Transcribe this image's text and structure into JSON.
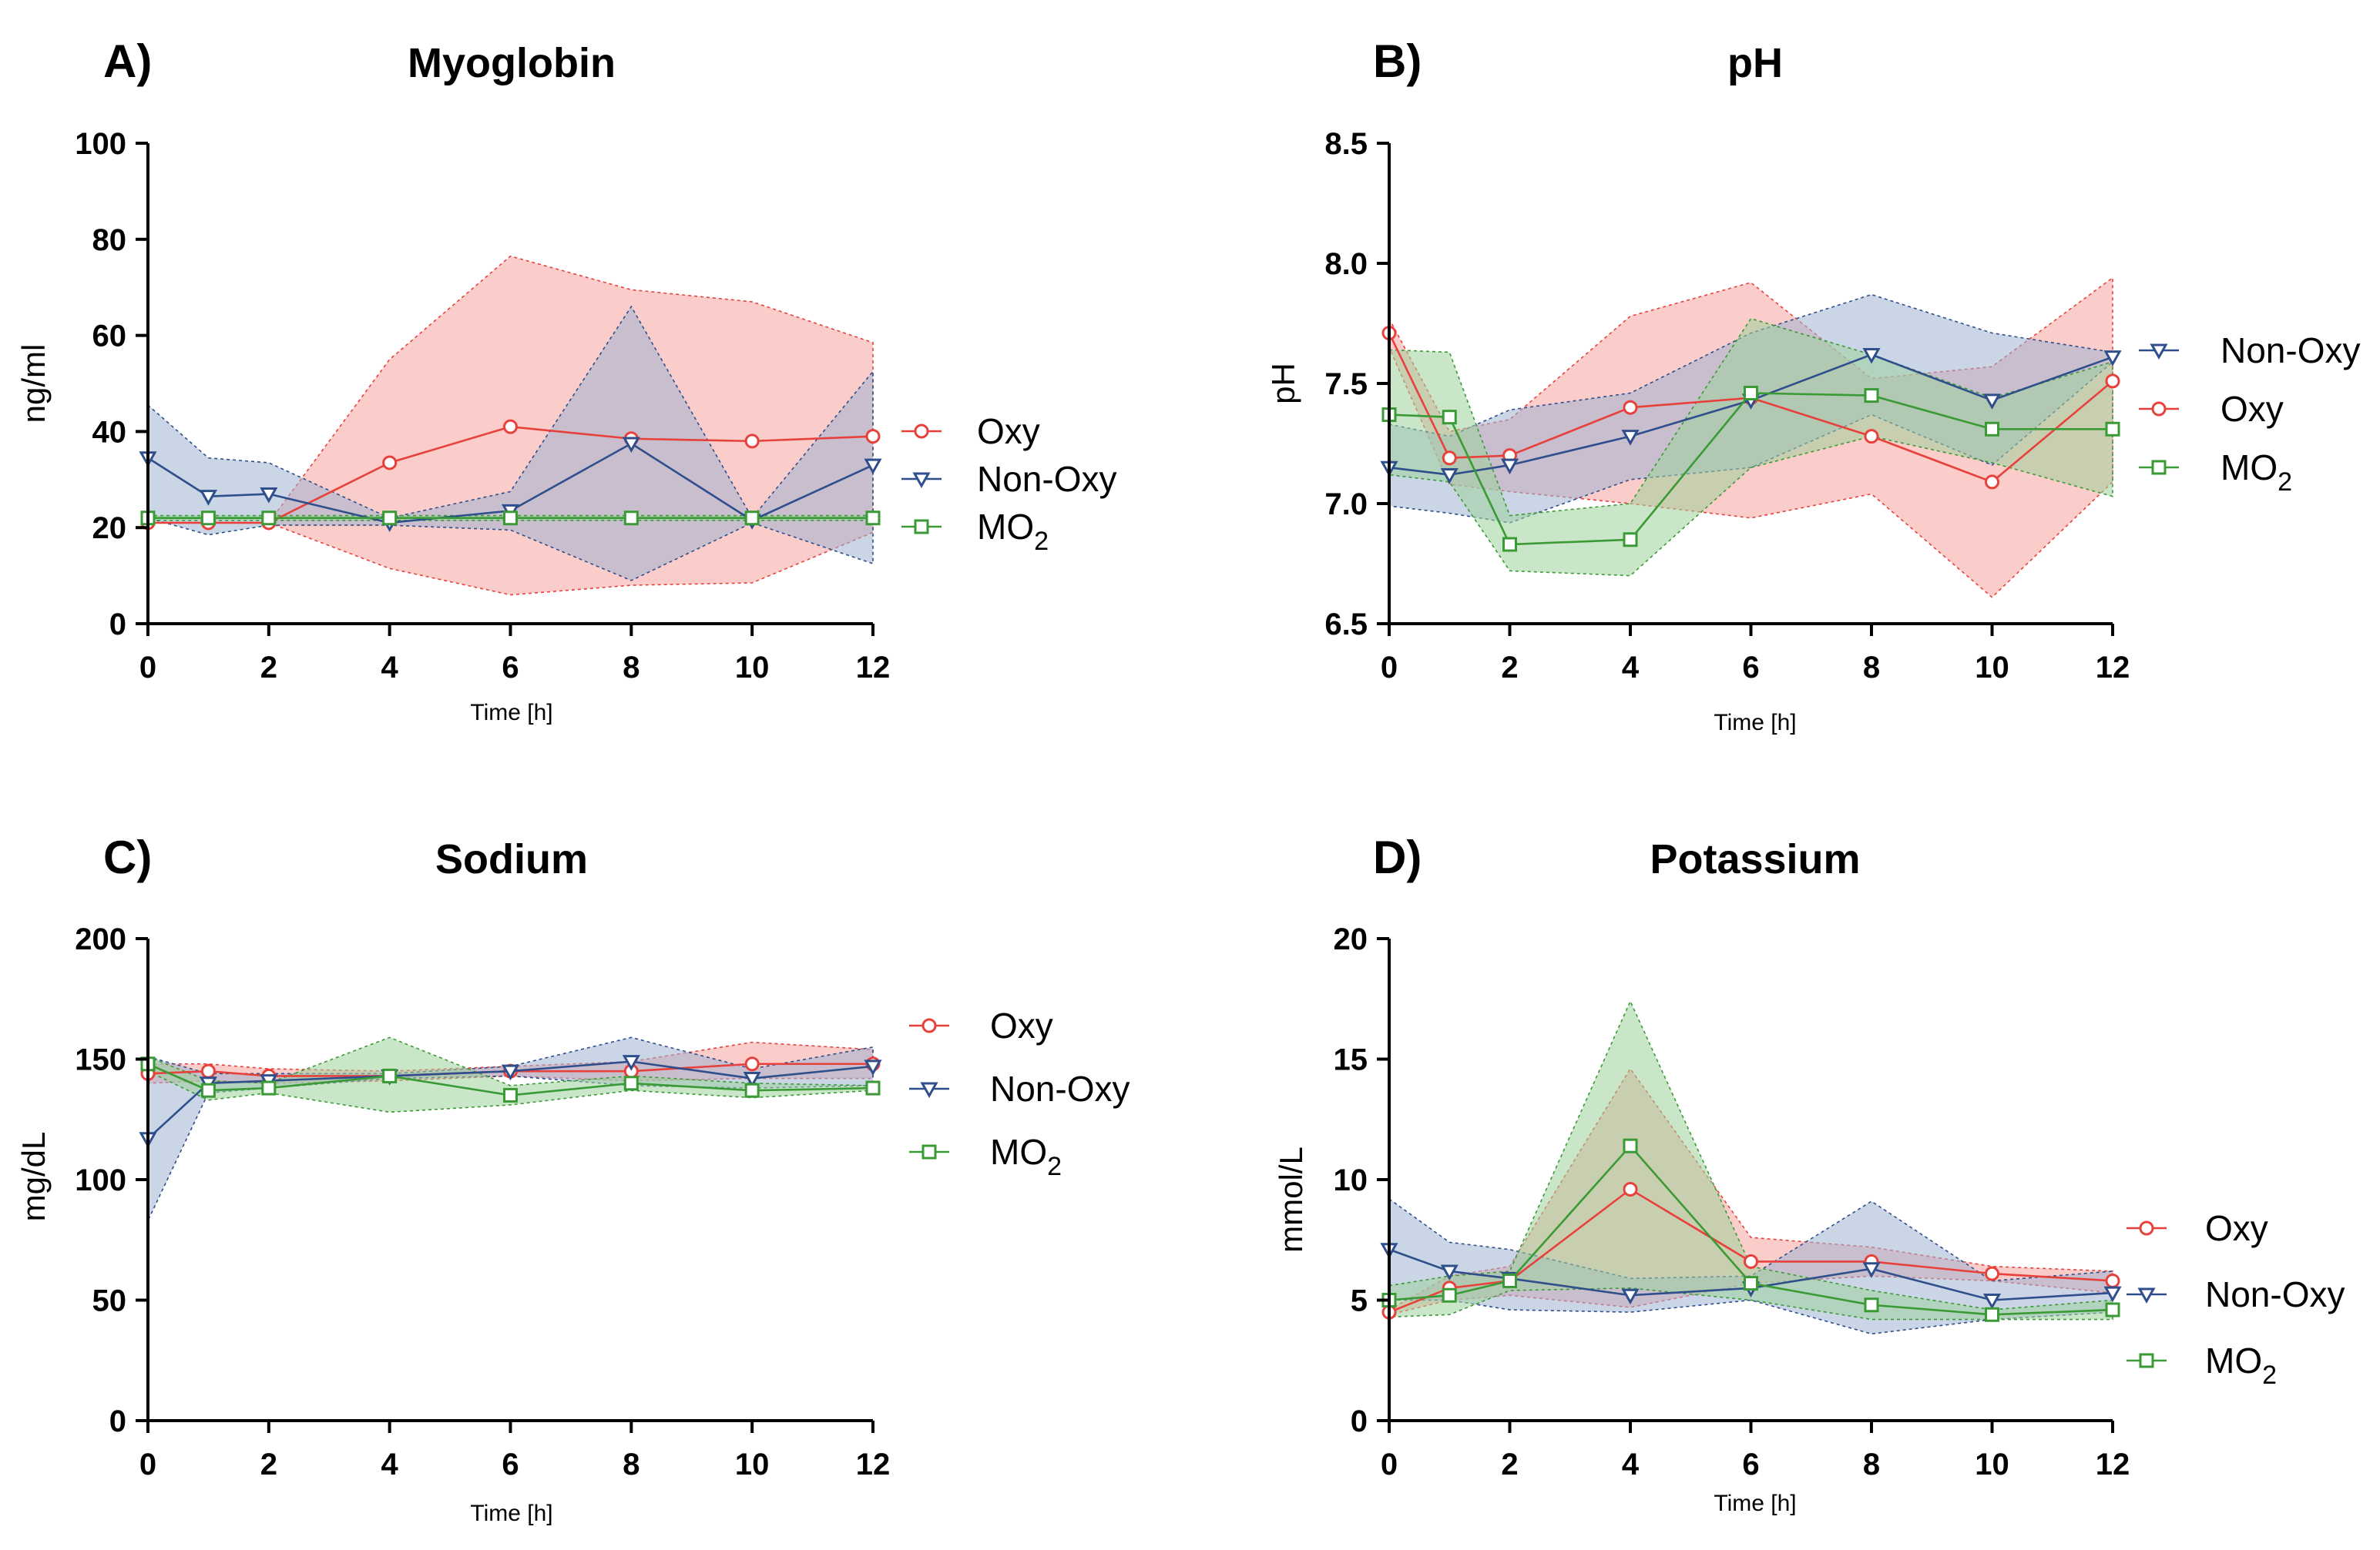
{
  "chart_data": [
    {
      "panel": "A)",
      "type": "line",
      "title": "Myoglobin",
      "xlabel": "Time [h]",
      "ylabel": "ng/ml",
      "x": [
        0,
        1,
        2,
        4,
        6,
        8,
        10,
        12
      ],
      "xticks": [
        0,
        2,
        4,
        6,
        8,
        10,
        12
      ],
      "xlim": [
        0,
        12
      ],
      "ylim": [
        0,
        100
      ],
      "yticks": [
        0,
        20,
        40,
        60,
        80,
        100
      ],
      "ytick_labels": [
        "0",
        "20",
        "40",
        "60",
        "80",
        "100"
      ],
      "legend_position": "right",
      "series": [
        {
          "key": "oxy",
          "name": "Oxy",
          "values": [
            21,
            21,
            21,
            33.5,
            41,
            38.5,
            38,
            39
          ],
          "lower": [
            21,
            21,
            21,
            11.5,
            6,
            8,
            8.5,
            19
          ],
          "upper": [
            21,
            21,
            21,
            55,
            76.5,
            69.5,
            67,
            58.5
          ]
        },
        {
          "key": "nonoxy",
          "name": "Non-Oxy",
          "values": [
            34.5,
            26.5,
            27,
            21,
            23.5,
            37.5,
            21.5,
            33
          ],
          "lower": [
            22,
            18.5,
            20.5,
            20.5,
            19.5,
            9,
            21,
            12.5
          ],
          "upper": [
            45.5,
            34.5,
            33.5,
            22,
            27.5,
            66,
            22,
            52.5
          ]
        },
        {
          "key": "mo2",
          "name": "MO2",
          "sub": "2",
          "values": [
            22,
            22,
            22,
            22,
            22,
            22,
            22,
            22
          ],
          "lower": [
            21.5,
            21.5,
            21.5,
            21.5,
            21.5,
            21.5,
            21.5,
            21.5
          ],
          "upper": [
            22.5,
            22.5,
            22.5,
            22.5,
            22.5,
            22.5,
            22.5,
            22.5
          ]
        }
      ],
      "legend_order": [
        "oxy",
        "nonoxy",
        "mo2"
      ]
    },
    {
      "panel": "B)",
      "type": "line",
      "title": "pH",
      "xlabel": "Time [h]",
      "ylabel": "pH",
      "x": [
        0,
        1,
        2,
        4,
        6,
        8,
        10,
        12
      ],
      "xticks": [
        0,
        2,
        4,
        6,
        8,
        10,
        12
      ],
      "xlim": [
        0,
        12
      ],
      "ylim": [
        6.5,
        8.5
      ],
      "yticks": [
        6.5,
        7.0,
        7.5,
        8.0,
        8.5
      ],
      "ytick_labels": [
        "6.5",
        "7.0",
        "7.5",
        "8.0",
        "8.5"
      ],
      "legend_position": "right",
      "series": [
        {
          "key": "oxy",
          "name": "Oxy",
          "values": [
            7.71,
            7.19,
            7.2,
            7.4,
            7.44,
            7.28,
            7.09,
            7.51
          ],
          "lower": [
            7.65,
            7.08,
            7.05,
            7.0,
            6.94,
            7.04,
            6.61,
            7.09
          ],
          "upper": [
            7.77,
            7.3,
            7.35,
            7.78,
            7.92,
            7.52,
            7.57,
            7.94
          ]
        },
        {
          "key": "nonoxy",
          "name": "Non-Oxy",
          "values": [
            7.15,
            7.12,
            7.16,
            7.28,
            7.43,
            7.62,
            7.43,
            7.61
          ],
          "lower": [
            6.99,
            6.96,
            6.92,
            7.1,
            7.15,
            7.37,
            7.16,
            7.59
          ],
          "upper": [
            7.33,
            7.28,
            7.39,
            7.46,
            7.71,
            7.87,
            7.71,
            7.63
          ]
        },
        {
          "key": "mo2",
          "name": "MO2",
          "sub": "2",
          "values": [
            7.37,
            7.36,
            6.83,
            6.85,
            7.46,
            7.45,
            7.31,
            7.31
          ],
          "lower": [
            7.12,
            7.09,
            6.72,
            6.7,
            7.15,
            7.28,
            7.17,
            7.03
          ],
          "upper": [
            7.64,
            7.63,
            6.95,
            7.0,
            7.77,
            7.62,
            7.44,
            7.59
          ]
        }
      ],
      "legend_order": [
        "nonoxy",
        "oxy",
        "mo2"
      ]
    },
    {
      "panel": "C)",
      "type": "line",
      "title": "Sodium",
      "xlabel": "Time [h]",
      "ylabel": "mg/dL",
      "x": [
        0,
        1,
        2,
        4,
        6,
        8,
        10,
        12
      ],
      "xticks": [
        0,
        2,
        4,
        6,
        8,
        10,
        12
      ],
      "xlim": [
        0,
        12
      ],
      "ylim": [
        0,
        200
      ],
      "yticks": [
        0,
        50,
        100,
        150,
        200
      ],
      "ytick_labels": [
        "0",
        "50",
        "100",
        "150",
        "200"
      ],
      "legend_position": "right",
      "series": [
        {
          "key": "oxy",
          "name": "Oxy",
          "values": [
            144,
            145,
            143,
            143,
            145,
            145,
            148,
            148
          ],
          "lower": [
            140,
            141,
            140,
            141,
            143,
            141,
            142,
            142
          ],
          "upper": [
            148,
            148,
            146,
            145,
            147,
            149,
            157,
            154
          ]
        },
        {
          "key": "nonoxy",
          "name": "Non-Oxy",
          "values": [
            117,
            140,
            141,
            143,
            145,
            149,
            142,
            147
          ],
          "lower": [
            83,
            136,
            138,
            142,
            143,
            139,
            138,
            139
          ],
          "upper": [
            151,
            144,
            144,
            144,
            147,
            159,
            146,
            155
          ]
        },
        {
          "key": "mo2",
          "name": "MO2",
          "sub": "2",
          "values": [
            148,
            137,
            138,
            143,
            135,
            140,
            137,
            138
          ],
          "lower": [
            145,
            133,
            136,
            128,
            131,
            137,
            134,
            137
          ],
          "upper": [
            151,
            141,
            140,
            159,
            139,
            143,
            140,
            139
          ]
        }
      ],
      "legend_order": [
        "oxy",
        "nonoxy",
        "mo2"
      ]
    },
    {
      "panel": "D)",
      "type": "line",
      "title": "Potassium",
      "xlabel": "Time [h]",
      "ylabel": "mmol/L",
      "x": [
        0,
        1,
        2,
        4,
        6,
        8,
        10,
        12
      ],
      "xticks": [
        0,
        2,
        4,
        6,
        8,
        10,
        12
      ],
      "xlim": [
        0,
        12
      ],
      "ylim": [
        0,
        20
      ],
      "yticks": [
        0,
        5,
        10,
        15,
        20
      ],
      "ytick_labels": [
        "0",
        "5",
        "10",
        "15",
        "20"
      ],
      "legend_position": "right",
      "series": [
        {
          "key": "oxy",
          "name": "Oxy",
          "values": [
            4.5,
            5.5,
            5.8,
            9.6,
            6.6,
            6.6,
            6.1,
            5.8
          ],
          "lower": [
            4.4,
            5.0,
            5.2,
            4.7,
            5.7,
            6.0,
            5.8,
            5.3
          ],
          "upper": [
            4.6,
            6.0,
            6.4,
            14.6,
            7.6,
            7.2,
            6.4,
            6.2
          ]
        },
        {
          "key": "nonoxy",
          "name": "Non-Oxy",
          "values": [
            7.1,
            6.2,
            5.9,
            5.2,
            5.5,
            6.3,
            5.0,
            5.3
          ],
          "lower": [
            5.0,
            5.0,
            4.6,
            4.5,
            5.0,
            3.6,
            4.2,
            4.5
          ],
          "upper": [
            9.2,
            7.4,
            7.1,
            5.9,
            6.0,
            9.1,
            5.8,
            6.2
          ]
        },
        {
          "key": "mo2",
          "name": "MO2",
          "sub": "2",
          "values": [
            5.0,
            5.2,
            5.8,
            11.4,
            5.7,
            4.8,
            4.4,
            4.6
          ],
          "lower": [
            4.3,
            4.4,
            5.4,
            5.5,
            5.0,
            4.2,
            4.2,
            4.2
          ],
          "upper": [
            5.6,
            6.0,
            6.2,
            17.4,
            6.4,
            5.4,
            4.6,
            5.0
          ]
        }
      ],
      "legend_order": [
        "oxy",
        "nonoxy",
        "mo2"
      ]
    }
  ],
  "colors": {
    "oxy_line": "#e8413c",
    "oxy_fill": "#f5a49f",
    "nonoxy_line": "#2f4e8c",
    "nonoxy_fill": "#9fb3d1",
    "mo2_line": "#3a9a35",
    "mo2_fill": "#9fd19a"
  },
  "markers": {
    "oxy": "circle",
    "nonoxy": "triangle-down",
    "mo2": "square"
  }
}
